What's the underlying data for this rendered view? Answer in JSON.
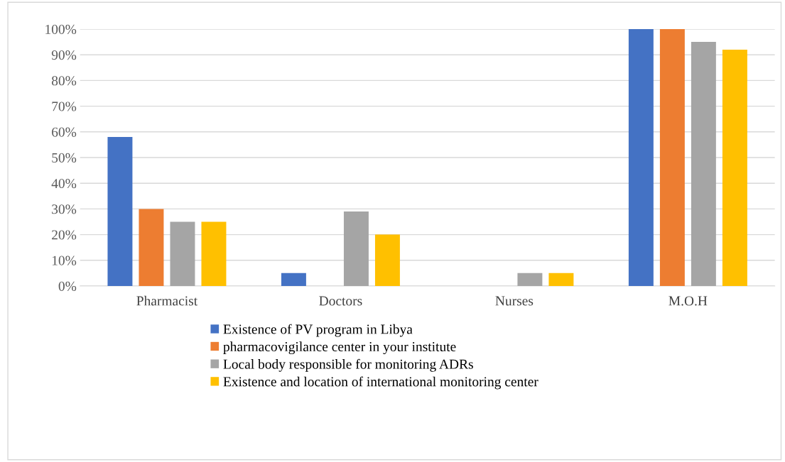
{
  "chart_data": {
    "type": "bar",
    "categories": [
      "Pharmacist",
      "Doctors",
      "Nurses",
      "M.O.H"
    ],
    "series": [
      {
        "name": "Existence of PV program in Libya",
        "color": "#4472c4",
        "values": [
          58,
          5,
          0,
          100
        ]
      },
      {
        "name": "pharmacovigilance center in your institute",
        "color": "#ed7d31",
        "values": [
          30,
          0,
          0,
          100
        ]
      },
      {
        "name": "Local body responsible for monitoring ADRs",
        "color": "#a5a5a5",
        "values": [
          25,
          29,
          5,
          95
        ]
      },
      {
        "name": "Existence and location of international monitoring center",
        "color": "#ffc000",
        "values": [
          25,
          20,
          5,
          92
        ]
      }
    ],
    "ylim": [
      0,
      100
    ],
    "yticks": [
      {
        "value": 0,
        "label": "0%"
      },
      {
        "value": 10,
        "label": "10%"
      },
      {
        "value": 20,
        "label": "20%"
      },
      {
        "value": 30,
        "label": "30%"
      },
      {
        "value": 40,
        "label": "40%"
      },
      {
        "value": 50,
        "label": "50%"
      },
      {
        "value": 60,
        "label": "60%"
      },
      {
        "value": 70,
        "label": "70%"
      },
      {
        "value": 80,
        "label": "80%"
      },
      {
        "value": 90,
        "label": "90%"
      },
      {
        "value": 100,
        "label": "100%"
      }
    ],
    "grid": "y",
    "legend": "bottom"
  }
}
